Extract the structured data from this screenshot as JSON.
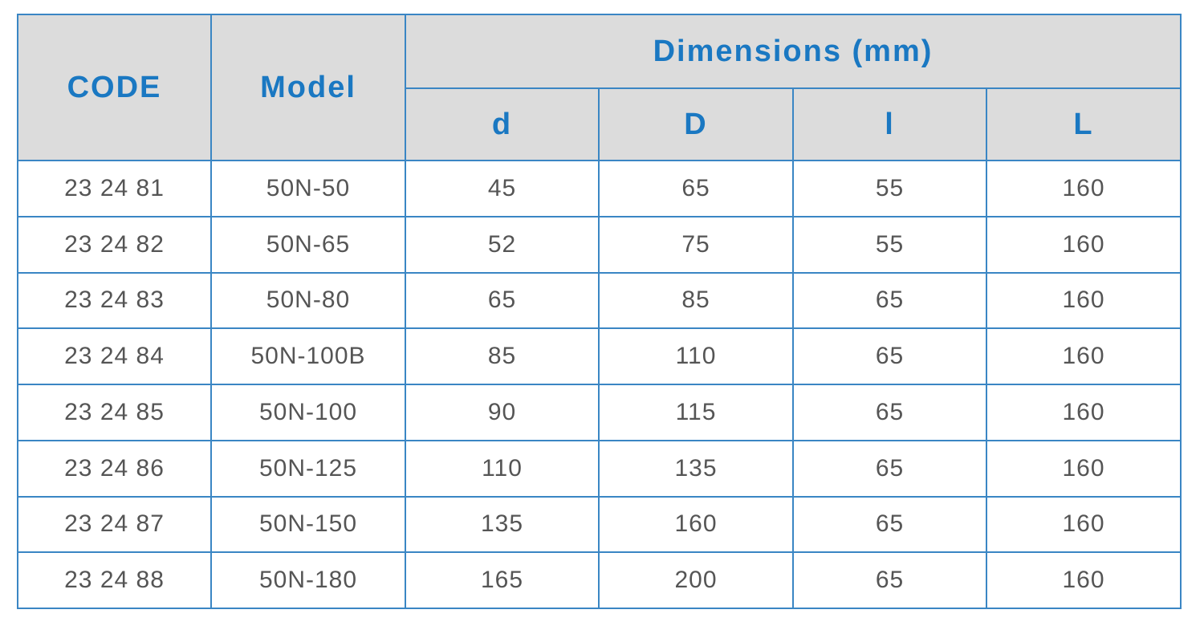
{
  "header": {
    "code": "CODE",
    "model": "Model",
    "group": "Dimensions (mm)",
    "columns": [
      "d",
      "D",
      "l",
      "L"
    ]
  },
  "table": {
    "rows": [
      [
        "23 24 81",
        "50N-50",
        45,
        65,
        55,
        160
      ],
      [
        "23 24 82",
        "50N-65",
        52,
        75,
        55,
        160
      ],
      [
        "23 24 83",
        "50N-80",
        65,
        85,
        65,
        160
      ],
      [
        "23 24 84",
        "50N-100B",
        85,
        110,
        65,
        160
      ],
      [
        "23 24 85",
        "50N-100",
        90,
        115,
        65,
        160
      ],
      [
        "23 24 86",
        "50N-125",
        110,
        135,
        65,
        160
      ],
      [
        "23 24 87",
        "50N-150",
        135,
        160,
        65,
        160
      ],
      [
        "23 24 88",
        "50N-180",
        165,
        200,
        65,
        160
      ]
    ]
  }
}
